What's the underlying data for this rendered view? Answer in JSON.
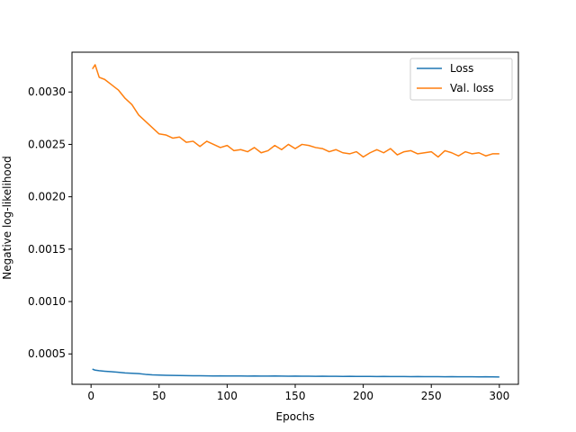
{
  "chart_data": {
    "type": "line",
    "title": "",
    "xlabel": "Epochs",
    "ylabel": "Negative log-likelihood",
    "xlim": [
      -14,
      314
    ],
    "ylim": [
      0.00021,
      0.00338
    ],
    "xticks": [
      0,
      50,
      100,
      150,
      200,
      250,
      300
    ],
    "yticks": [
      0.0005,
      0.001,
      0.0015,
      0.002,
      0.0025,
      0.003
    ],
    "ytick_labels": [
      "0.0005",
      "0.0010",
      "0.0015",
      "0.0020",
      "0.0025",
      "0.0030"
    ],
    "grid": false,
    "legend": "top-right",
    "x": [
      1,
      3,
      6,
      10,
      15,
      20,
      25,
      30,
      35,
      40,
      45,
      50,
      55,
      60,
      65,
      70,
      75,
      80,
      85,
      90,
      95,
      100,
      105,
      110,
      115,
      120,
      125,
      130,
      135,
      140,
      145,
      150,
      155,
      160,
      165,
      170,
      175,
      180,
      185,
      190,
      195,
      200,
      205,
      210,
      215,
      220,
      225,
      230,
      235,
      240,
      245,
      250,
      255,
      260,
      265,
      270,
      275,
      280,
      285,
      290,
      295,
      300
    ],
    "series": [
      {
        "name": "Loss",
        "color": "#1f77b4",
        "values": [
          0.000355,
          0.000345,
          0.00034,
          0.000335,
          0.00033,
          0.000325,
          0.000318,
          0.000315,
          0.000312,
          0.000305,
          0.0003,
          0.000298,
          0.000296,
          0.000295,
          0.000294,
          0.000293,
          0.000292,
          0.000292,
          0.000291,
          0.00029,
          0.000291,
          0.00029,
          0.000289,
          0.000289,
          0.000288,
          0.000289,
          0.000288,
          0.000288,
          0.000289,
          0.000288,
          0.000287,
          0.000288,
          0.000287,
          0.000287,
          0.000286,
          0.000287,
          0.000286,
          0.000286,
          0.000285,
          0.000286,
          0.000285,
          0.000285,
          0.000285,
          0.000284,
          0.000285,
          0.000284,
          0.000284,
          0.000284,
          0.000283,
          0.000284,
          0.000283,
          0.000283,
          0.000283,
          0.000282,
          0.000283,
          0.000282,
          0.000282,
          0.000282,
          0.000281,
          0.000282,
          0.000281,
          0.00028
        ]
      },
      {
        "name": "Val. loss",
        "color": "#ff7f0e",
        "values": [
          0.00322,
          0.00326,
          0.00314,
          0.00312,
          0.00307,
          0.00302,
          0.00294,
          0.00288,
          0.00278,
          0.00272,
          0.00266,
          0.0026,
          0.00259,
          0.00256,
          0.00257,
          0.00252,
          0.00253,
          0.00248,
          0.00253,
          0.0025,
          0.00247,
          0.00249,
          0.00244,
          0.00245,
          0.00243,
          0.00247,
          0.00242,
          0.00244,
          0.00249,
          0.00245,
          0.0025,
          0.00246,
          0.0025,
          0.00249,
          0.00247,
          0.00246,
          0.00243,
          0.00245,
          0.00242,
          0.00241,
          0.00243,
          0.00238,
          0.00242,
          0.00245,
          0.00242,
          0.00246,
          0.0024,
          0.00243,
          0.00244,
          0.00241,
          0.00242,
          0.00243,
          0.00238,
          0.00244,
          0.00242,
          0.00239,
          0.00243,
          0.00241,
          0.00242,
          0.00239,
          0.00241,
          0.00241
        ]
      }
    ]
  }
}
